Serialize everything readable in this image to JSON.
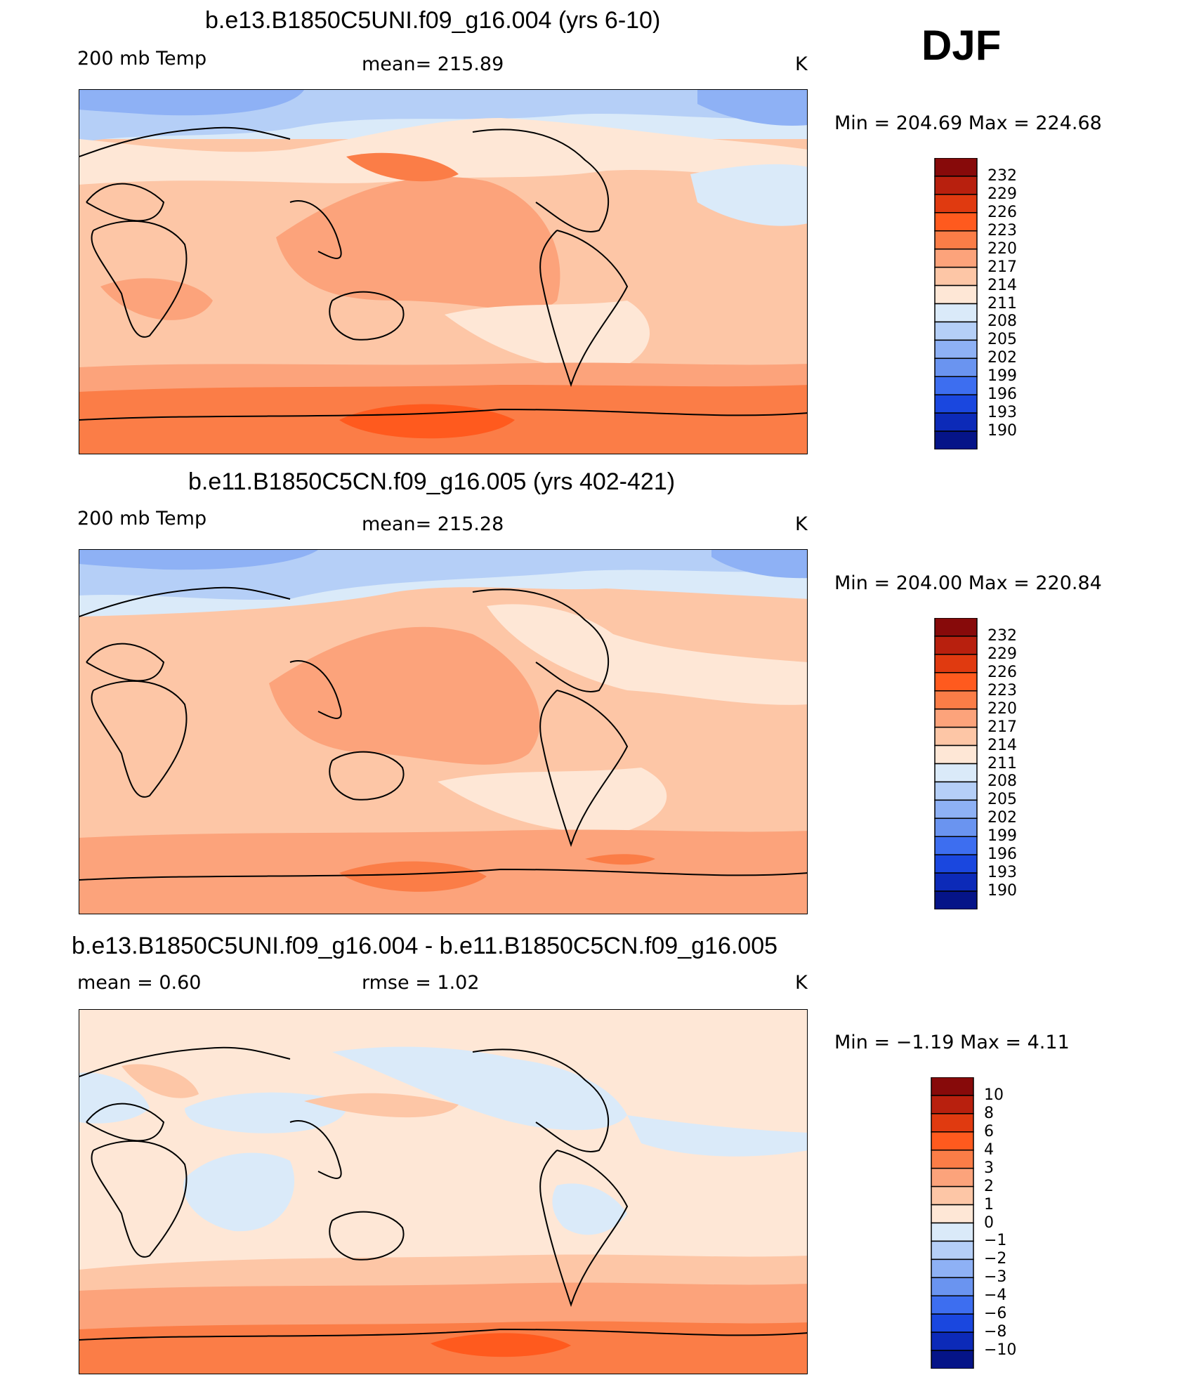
{
  "season": "DJF",
  "panels": [
    {
      "title": "b.e13.B1850C5UNI.f09_g16.004 (yrs 6-10)",
      "left_label": "200  mb  Temp",
      "center_label": "mean=  215.89",
      "units": "K",
      "min_max": "Min  =  204.69  Max  =  224.68",
      "colorbar_levels": [
        "232",
        "229",
        "226",
        "223",
        "220",
        "217",
        "214",
        "211",
        "208",
        "205",
        "202",
        "199",
        "196",
        "193",
        "190"
      ]
    },
    {
      "title": "b.e11.B1850C5CN.f09_g16.005 (yrs 402-421)",
      "left_label": "200  mb  Temp",
      "center_label": "mean=  215.28",
      "units": "K",
      "min_max": "Min  =  204.00  Max  =  220.84",
      "colorbar_levels": [
        "232",
        "229",
        "226",
        "223",
        "220",
        "217",
        "214",
        "211",
        "208",
        "205",
        "202",
        "199",
        "196",
        "193",
        "190"
      ]
    },
    {
      "title": "b.e13.B1850C5UNI.f09_g16.004 - b.e11.B1850C5CN.f09_g16.005",
      "left_label": "mean  =      0.60",
      "center_label": "rmse  =      1.02",
      "units": "K",
      "min_max": "Min  =    −1.19  Max  =      4.11",
      "colorbar_levels": [
        "10",
        "8",
        "6",
        "4",
        "3",
        "2",
        "1",
        "0",
        "−1",
        "−2",
        "−3",
        "−4",
        "−6",
        "−8",
        "−10"
      ]
    }
  ],
  "colors": {
    "bin_colors_top_to_bottom": [
      "#870a0a",
      "#b8200e",
      "#e03a10",
      "#ff5a1e",
      "#fb7d47",
      "#fca37b",
      "#fdc6a6",
      "#fee7d6",
      "#daeaf9",
      "#b5cff7",
      "#8eb1f5",
      "#6a94f0",
      "#3d6ef0",
      "#1a47df",
      "#0c2ab8",
      "#051488"
    ],
    "ocean": "#fee7d6"
  }
}
